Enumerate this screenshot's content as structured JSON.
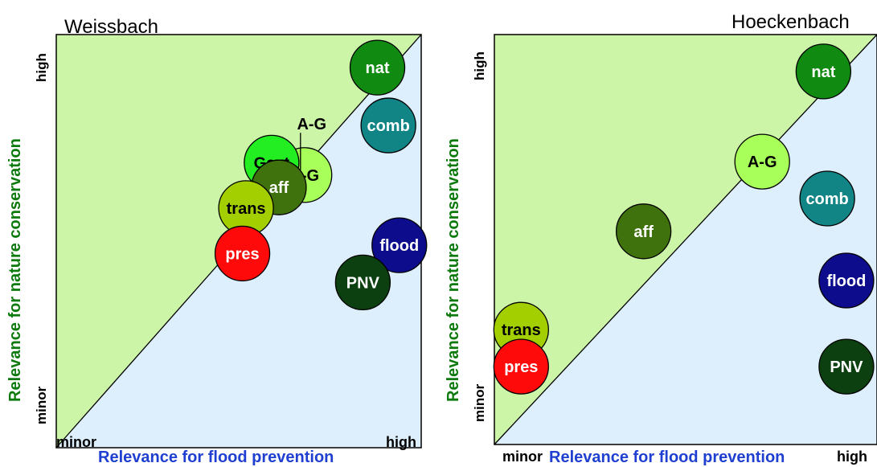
{
  "chart_data": [
    {
      "type": "scatter",
      "title": "Weissbach",
      "xlabel": "Relevance for flood prevention",
      "ylabel": "Relevance for nature conservation",
      "xticks": [
        "minor",
        "high"
      ],
      "yticks": [
        "minor",
        "high"
      ],
      "xlim": [
        0,
        1
      ],
      "ylim": [
        0,
        1
      ],
      "grid": false,
      "regions": {
        "upper_left_color": "#ccf5a8",
        "lower_right_color": "#ddeefc"
      },
      "points": [
        {
          "label": "nat",
          "x": 0.88,
          "y": 0.92,
          "color": "#108a10",
          "text_color": "#ffffff"
        },
        {
          "label": "comb",
          "x": 0.91,
          "y": 0.78,
          "color": "#118585",
          "text_color": "#ffffff"
        },
        {
          "label": "A-G",
          "x": 0.68,
          "y": 0.66,
          "color": "#a8ff5a",
          "text_color": "#000000"
        },
        {
          "label": "Gext",
          "x": 0.59,
          "y": 0.69,
          "color": "#22ee22",
          "text_color": "#000000"
        },
        {
          "label": "aff",
          "x": 0.61,
          "y": 0.63,
          "color": "#3f720c",
          "text_color": "#ffffff"
        },
        {
          "label": "trans",
          "x": 0.52,
          "y": 0.58,
          "color": "#a3cf00",
          "text_color": "#000000"
        },
        {
          "label": "pres",
          "x": 0.51,
          "y": 0.47,
          "color": "#ff0a0a",
          "text_color": "#ffffff"
        },
        {
          "label": "flood",
          "x": 0.94,
          "y": 0.49,
          "color": "#0c0c8c",
          "text_color": "#ffffff"
        },
        {
          "label": "PNV",
          "x": 0.84,
          "y": 0.4,
          "color": "#0c4010",
          "text_color": "#ffffff"
        }
      ],
      "annotations": [
        {
          "text": "A-G",
          "x": 0.7,
          "y": 0.77
        }
      ]
    },
    {
      "type": "scatter",
      "title": "Hoeckenbach",
      "xlabel": "Relevance for flood prevention",
      "ylabel": "Relevance for nature conservation",
      "xticks": [
        "minor",
        "high"
      ],
      "yticks": [
        "minor",
        "high"
      ],
      "xlim": [
        0,
        1
      ],
      "ylim": [
        0,
        1
      ],
      "grid": false,
      "regions": {
        "upper_left_color": "#ccf5a8",
        "lower_right_color": "#ddeefc"
      },
      "points": [
        {
          "label": "nat",
          "x": 0.86,
          "y": 0.91,
          "color": "#108a10",
          "text_color": "#ffffff"
        },
        {
          "label": "A-G",
          "x": 0.7,
          "y": 0.69,
          "color": "#a8ff5a",
          "text_color": "#000000"
        },
        {
          "label": "comb",
          "x": 0.87,
          "y": 0.6,
          "color": "#118585",
          "text_color": "#ffffff"
        },
        {
          "label": "aff",
          "x": 0.39,
          "y": 0.52,
          "color": "#3f720c",
          "text_color": "#ffffff"
        },
        {
          "label": "flood",
          "x": 0.92,
          "y": 0.4,
          "color": "#0c0c8c",
          "text_color": "#ffffff"
        },
        {
          "label": "trans",
          "x": 0.07,
          "y": 0.28,
          "color": "#a3cf00",
          "text_color": "#000000"
        },
        {
          "label": "pres",
          "x": 0.07,
          "y": 0.19,
          "color": "#ff0a0a",
          "text_color": "#ffffff"
        },
        {
          "label": "PNV",
          "x": 0.92,
          "y": 0.19,
          "color": "#0c4010",
          "text_color": "#ffffff"
        }
      ],
      "annotations": []
    }
  ]
}
